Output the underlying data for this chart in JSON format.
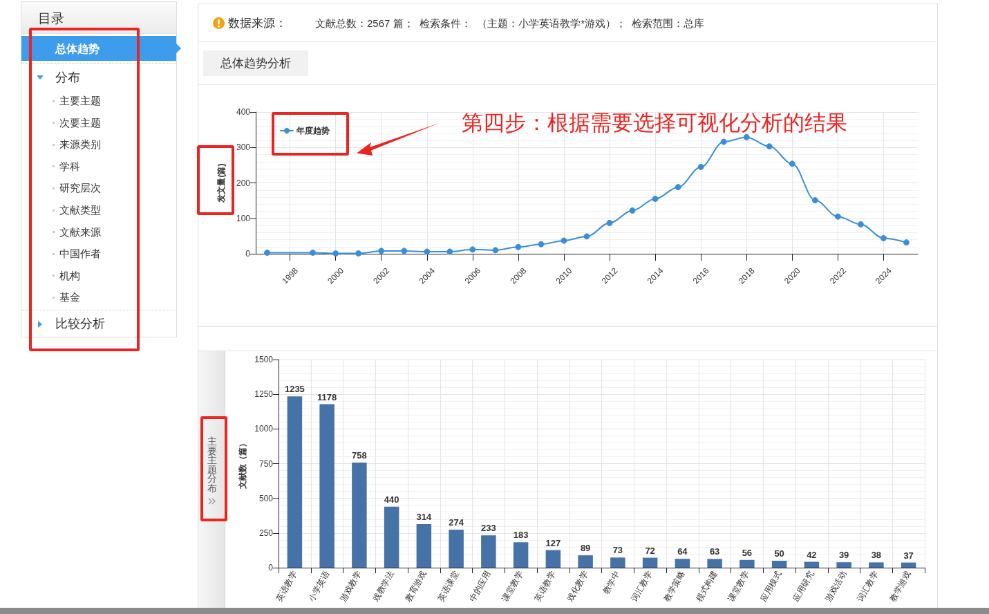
{
  "chart_data": [
    {
      "type": "other",
      "title": "目录",
      "annotations": [
        "总体趋势",
        "分布",
        "主要主题",
        "次要主题",
        "来源类别",
        "学科",
        "研究层次",
        "文献类型",
        "文献来源",
        "中国作者",
        "机构",
        "基金",
        "比较分析"
      ]
    },
    {
      "type": "line",
      "title": "总体趋势分析",
      "annotations": [
        "数据来源：",
        "文献总数：2567 篇；  检索条件：  （主题：小学英语教学*游戏）；  检索范围：总库",
        "第四步：根据需要选择可视化分析的结果"
      ],
      "ylabel": "发文量(篇)",
      "x": [
        1997,
        1999,
        2000,
        2001,
        2002,
        2003,
        2004,
        2005,
        2006,
        2007,
        2008,
        2009,
        2010,
        2011,
        2012,
        2013,
        2014,
        2015,
        2016,
        2017,
        2018,
        2019,
        2020,
        2021,
        2022,
        2023,
        2024,
        2025
      ],
      "series": [
        {
          "name": "年度趋势",
          "color": "#3a8ed8",
          "values": [
            3,
            3,
            1,
            1,
            8,
            8,
            6,
            6,
            12,
            10,
            19,
            27,
            37,
            49,
            87,
            122,
            155,
            188,
            245,
            316,
            329,
            303,
            254,
            151,
            105,
            83,
            44,
            32
          ]
        }
      ],
      "xlim": [
        1996.5,
        2025.5
      ],
      "xticks": [
        1998,
        2000,
        2002,
        2004,
        2006,
        2008,
        2010,
        2012,
        2014,
        2016,
        2018,
        2020,
        2022,
        2024
      ],
      "ylim": [
        0,
        400
      ],
      "yticks": [
        0,
        100,
        200,
        300,
        400
      ],
      "grid": true,
      "legend": "top left",
      "marker": "circle"
    },
    {
      "type": "bar",
      "title": "主要主题分布",
      "ylabel": "文献数（篇）",
      "categories": [
        "英语教学",
        "小学英语",
        "游戏教学",
        "戏教学法",
        "教育游戏",
        "英语课堂",
        "中的应用",
        "课堂教学",
        "英语教学",
        "戏化教学",
        "教学中",
        "词汇教学",
        "教学策略",
        "模式构建",
        "课堂教学",
        "应用模式",
        "应用研究",
        "游戏活动",
        "词汇教学",
        "教学游戏"
      ],
      "values": [
        1235,
        1178,
        758,
        440,
        314,
        274,
        233,
        183,
        127,
        89,
        73,
        72,
        64,
        63,
        56,
        50,
        42,
        39,
        38,
        37
      ],
      "color": "#4572a7",
      "ylim": [
        0,
        1500
      ],
      "yticks": [
        0,
        250,
        500,
        750,
        1000,
        1250,
        1500
      ],
      "grid": true,
      "data_labels": true
    }
  ]
}
